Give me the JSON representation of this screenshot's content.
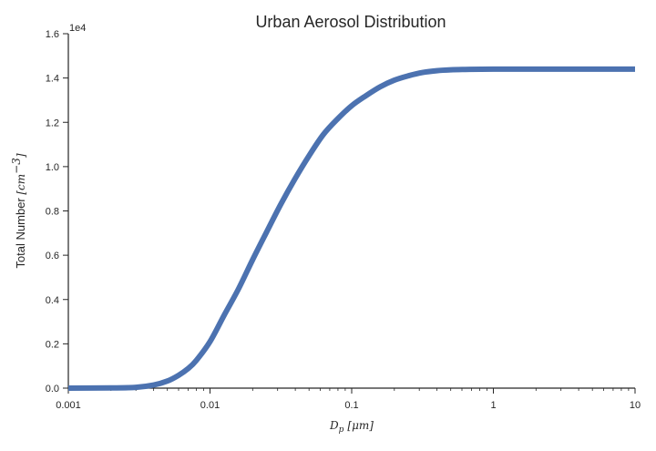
{
  "chart_data": {
    "type": "line",
    "title": "Urban Aerosol Distribution",
    "xlabel": "D_p [μm]",
    "ylabel": "Total Number [cm^-3]",
    "xscale": "log",
    "xlim": [
      0.001,
      10
    ],
    "ylim": [
      0,
      16000
    ],
    "x_ticks": [
      {
        "value": 0.001,
        "label": "0.001"
      },
      {
        "value": 0.01,
        "label": "0.01"
      },
      {
        "value": 0.1,
        "label": "0.1"
      },
      {
        "value": 1,
        "label": "1"
      },
      {
        "value": 10,
        "label": "10"
      }
    ],
    "y_ticks": [
      {
        "value": 0,
        "label": "0.0"
      },
      {
        "value": 2000,
        "label": "0.2"
      },
      {
        "value": 4000,
        "label": "0.4"
      },
      {
        "value": 6000,
        "label": "0.6"
      },
      {
        "value": 8000,
        "label": "0.8"
      },
      {
        "value": 10000,
        "label": "1.0"
      },
      {
        "value": 12000,
        "label": "1.2"
      },
      {
        "value": 14000,
        "label": "1.4"
      },
      {
        "value": 16000,
        "label": "1.6"
      }
    ],
    "y_offset_label": "1e4",
    "grid": false,
    "series": [
      {
        "color": "#4c72b0",
        "points": [
          {
            "x": 0.001,
            "y": 0
          },
          {
            "x": 0.002,
            "y": 8
          },
          {
            "x": 0.003,
            "y": 35
          },
          {
            "x": 0.004,
            "y": 140
          },
          {
            "x": 0.005,
            "y": 320
          },
          {
            "x": 0.006,
            "y": 580
          },
          {
            "x": 0.007,
            "y": 880
          },
          {
            "x": 0.008,
            "y": 1250
          },
          {
            "x": 0.01,
            "y": 2100
          },
          {
            "x": 0.0126,
            "y": 3300
          },
          {
            "x": 0.0158,
            "y": 4450
          },
          {
            "x": 0.02,
            "y": 5800
          },
          {
            "x": 0.0251,
            "y": 7050
          },
          {
            "x": 0.0316,
            "y": 8300
          },
          {
            "x": 0.0398,
            "y": 9450
          },
          {
            "x": 0.0501,
            "y": 10500
          },
          {
            "x": 0.0631,
            "y": 11450
          },
          {
            "x": 0.0794,
            "y": 12150
          },
          {
            "x": 0.1,
            "y": 12750
          },
          {
            "x": 0.1259,
            "y": 13200
          },
          {
            "x": 0.1585,
            "y": 13600
          },
          {
            "x": 0.1995,
            "y": 13900
          },
          {
            "x": 0.2512,
            "y": 14100
          },
          {
            "x": 0.3162,
            "y": 14250
          },
          {
            "x": 0.3981,
            "y": 14330
          },
          {
            "x": 0.5012,
            "y": 14370
          },
          {
            "x": 0.631,
            "y": 14385
          },
          {
            "x": 1,
            "y": 14400
          },
          {
            "x": 3,
            "y": 14400
          },
          {
            "x": 10,
            "y": 14400
          }
        ]
      }
    ]
  }
}
